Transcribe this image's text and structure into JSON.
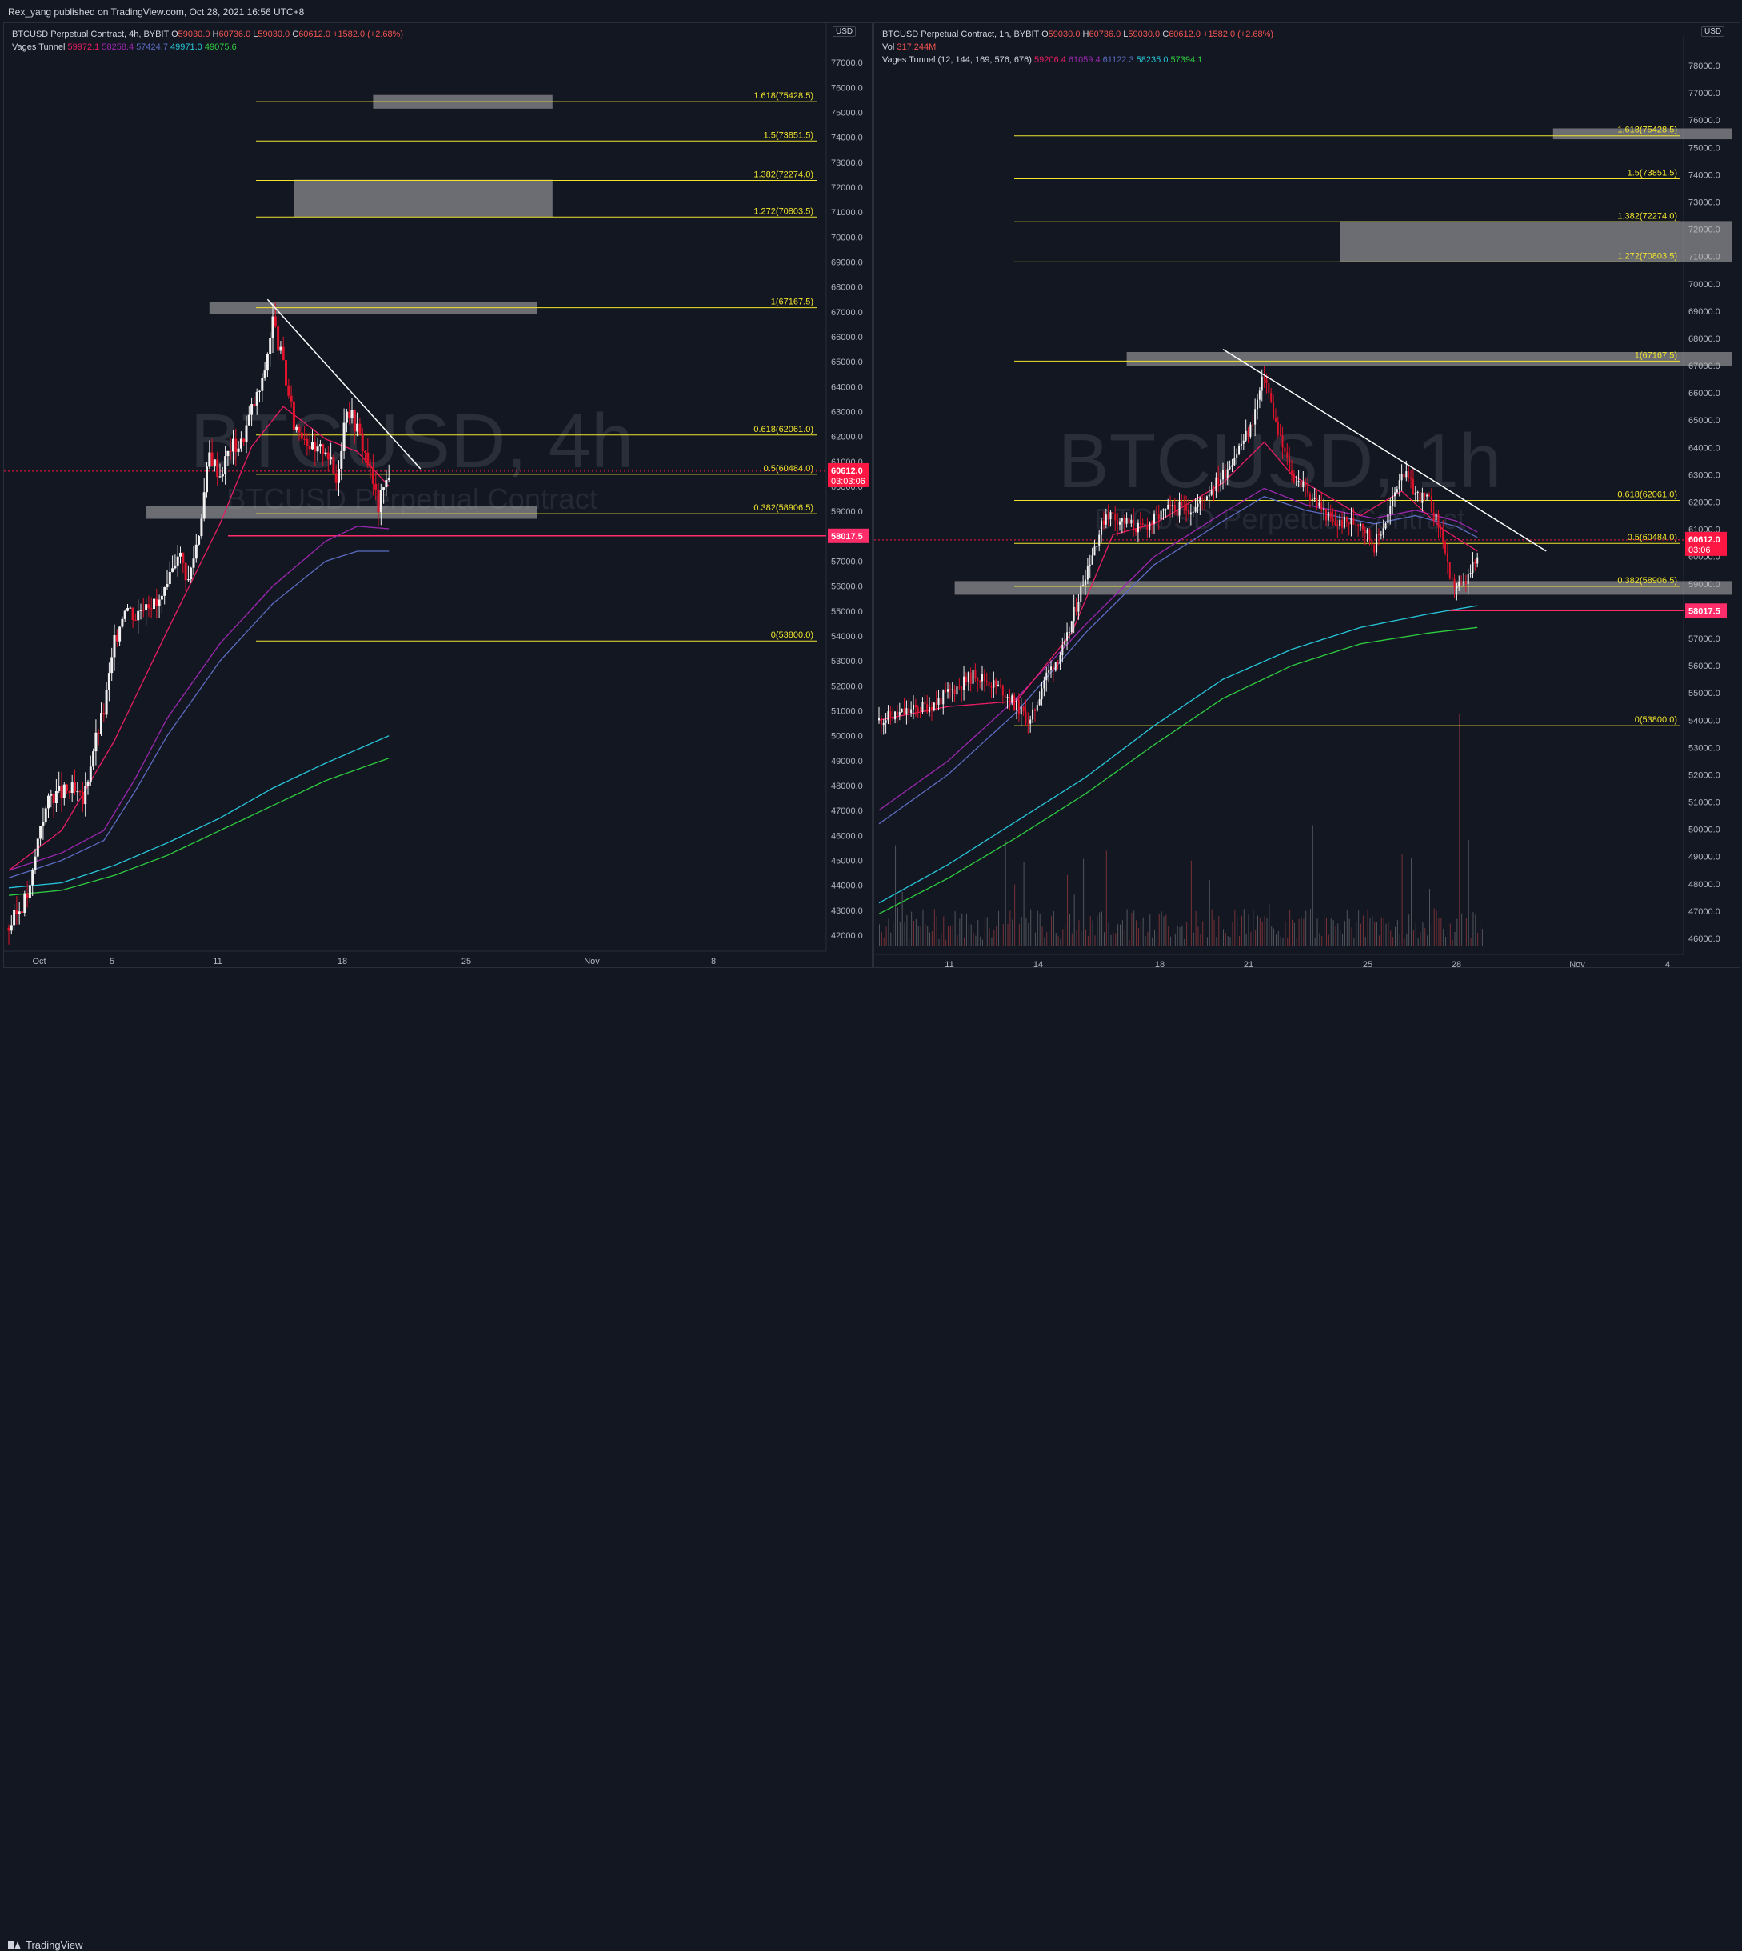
{
  "header": {
    "published": "Rex_yang published on TradingView.com, Oct 28, 2021 16:56 UTC+8"
  },
  "footer": {
    "brand": "TradingView"
  },
  "colors": {
    "bg": "#131722",
    "up": "#f0f0f0",
    "down": "#e0132b",
    "fib": "#f2e52d",
    "zone": "rgba(180,180,180,0.55)",
    "trend": "#ffffff",
    "support": "#ff2e6b",
    "ema_fast": "#e91e63",
    "ema_purple": "#9c27b0",
    "ema_blue": "#5c6bc0",
    "ema_cyan": "#26c6da",
    "ema_green": "#2ecc40",
    "price_tag": "#ff1744"
  },
  "fib_levels": [
    {
      "ratio": 1.618,
      "price": 75428.5,
      "label": "1.618(75428.5)"
    },
    {
      "ratio": 1.5,
      "price": 73851.5,
      "label": "1.5(73851.5)"
    },
    {
      "ratio": 1.382,
      "price": 72274.0,
      "label": "1.382(72274.0)"
    },
    {
      "ratio": 1.272,
      "price": 70803.5,
      "label": "1.272(70803.5)"
    },
    {
      "ratio": 1,
      "price": 67167.5,
      "label": "1(67167.5)"
    },
    {
      "ratio": 0.618,
      "price": 62061.0,
      "label": "0.618(62061.0)"
    },
    {
      "ratio": 0.5,
      "price": 60484.0,
      "label": "0.5(60484.0)"
    },
    {
      "ratio": 0.382,
      "price": 58906.5,
      "label": "0.382(58906.5)"
    },
    {
      "ratio": 0,
      "price": 53800.0,
      "label": "0(53800.0)"
    }
  ],
  "support_price": {
    "value": 58017.5,
    "label": "58017.5"
  },
  "chart_data": [
    {
      "type": "candlestick",
      "panel": "left",
      "symbol_line": "BTCUSD Perpetual Contract, 4h, BYBIT",
      "ohlc": {
        "o_label": "O",
        "o": "59030.0",
        "h_label": "H",
        "h": "60736.0",
        "l_label": "L",
        "l": "59030.0",
        "c_label": "C",
        "c": "60612.0",
        "chg": "+1582.0 (+2.68%)"
      },
      "indicator_name": "Vages Tunnel",
      "indicator_values": [
        "59972.1",
        "58258.4",
        "57424.7",
        "49971.0",
        "49075.6"
      ],
      "watermark": "BTCUSD, 4h",
      "watermark_sub": "BTCUSD Perpetual Contract",
      "currency": "USD",
      "last_price": "60612.0",
      "countdown": "03:03:06",
      "ylim": [
        42000,
        78000
      ],
      "y_ticks": [
        42000,
        43000,
        44000,
        45000,
        46000,
        47000,
        48000,
        49000,
        50000,
        51000,
        52000,
        53000,
        54000,
        55000,
        56000,
        57000,
        58000,
        59000,
        60000,
        61000,
        62000,
        63000,
        64000,
        65000,
        66000,
        67000,
        68000,
        69000,
        70000,
        71000,
        72000,
        73000,
        74000,
        75000,
        76000,
        77000
      ],
      "x_ticks": [
        "Oct",
        "5",
        "11",
        "18",
        "25",
        "Nov",
        "8"
      ],
      "price_path": [
        [
          0,
          42300
        ],
        [
          4,
          43800
        ],
        [
          6,
          46500
        ],
        [
          8,
          47600
        ],
        [
          12,
          47800
        ],
        [
          14,
          47300
        ],
        [
          16,
          49500
        ],
        [
          18,
          51000
        ],
        [
          20,
          53700
        ],
        [
          22,
          55300
        ],
        [
          24,
          54800
        ],
        [
          26,
          55500
        ],
        [
          28,
          55200
        ],
        [
          30,
          55800
        ],
        [
          32,
          57500
        ],
        [
          34,
          56200
        ],
        [
          36,
          58200
        ],
        [
          38,
          61300
        ],
        [
          40,
          60500
        ],
        [
          42,
          61600
        ],
        [
          44,
          61700
        ],
        [
          46,
          63100
        ],
        [
          48,
          64100
        ],
        [
          50,
          66700
        ],
        [
          52,
          64800
        ],
        [
          54,
          62500
        ],
        [
          56,
          62100
        ],
        [
          58,
          61300
        ],
        [
          60,
          61600
        ],
        [
          62,
          60200
        ],
        [
          64,
          63300
        ],
        [
          66,
          62300
        ],
        [
          68,
          61000
        ],
        [
          70,
          59200
        ],
        [
          72,
          60600
        ]
      ],
      "ema_fast": [
        [
          0,
          44600
        ],
        [
          10,
          46200
        ],
        [
          20,
          49800
        ],
        [
          30,
          54200
        ],
        [
          40,
          58500
        ],
        [
          46,
          61600
        ],
        [
          52,
          63200
        ],
        [
          60,
          61900
        ],
        [
          66,
          61400
        ],
        [
          72,
          60000
        ]
      ],
      "ema_purple": [
        [
          0,
          44600
        ],
        [
          10,
          45300
        ],
        [
          18,
          46200
        ],
        [
          24,
          48300
        ],
        [
          30,
          50700
        ],
        [
          40,
          53700
        ],
        [
          50,
          56000
        ],
        [
          60,
          57800
        ],
        [
          66,
          58400
        ],
        [
          72,
          58300
        ]
      ],
      "ema_blue": [
        [
          0,
          44300
        ],
        [
          10,
          45000
        ],
        [
          18,
          45800
        ],
        [
          24,
          47800
        ],
        [
          30,
          50000
        ],
        [
          40,
          53000
        ],
        [
          50,
          55300
        ],
        [
          60,
          57000
        ],
        [
          66,
          57400
        ],
        [
          72,
          57400
        ]
      ],
      "ema_cyan": [
        [
          0,
          43900
        ],
        [
          10,
          44100
        ],
        [
          20,
          44800
        ],
        [
          30,
          45700
        ],
        [
          40,
          46700
        ],
        [
          50,
          47900
        ],
        [
          60,
          48900
        ],
        [
          72,
          50000
        ]
      ],
      "ema_green": [
        [
          0,
          43600
        ],
        [
          10,
          43800
        ],
        [
          20,
          44400
        ],
        [
          30,
          45200
        ],
        [
          40,
          46200
        ],
        [
          50,
          47200
        ],
        [
          60,
          48200
        ],
        [
          72,
          49100
        ]
      ],
      "trendline": [
        [
          49,
          67500
        ],
        [
          78,
          60700
        ]
      ],
      "zones": [
        [
          69,
          103,
          75150,
          75700
        ],
        [
          54,
          103,
          70800,
          72300
        ],
        [
          38,
          100,
          66900,
          67400
        ],
        [
          26,
          100,
          58700,
          59200
        ]
      ],
      "n_bars": 124
    },
    {
      "type": "candlestick",
      "panel": "right",
      "symbol_line": "BTCUSD Perpetual Contract, 1h, BYBIT",
      "ohlc": {
        "o_label": "O",
        "o": "59030.0",
        "h_label": "H",
        "h": "60736.0",
        "l_label": "L",
        "l": "59030.0",
        "c_label": "C",
        "c": "60612.0",
        "chg": "+1582.0 (+2.68%)"
      },
      "vol_label": "Vol",
      "vol_value": "317.244M",
      "indicator_name": "Vages Tunnel (12, 144, 169, 576, 676)",
      "indicator_values": [
        "59206.4",
        "61059.4",
        "61122.3",
        "58235.0",
        "57394.1"
      ],
      "watermark": "BTCUSD, 1h",
      "watermark_sub": "BTCUSD Perpetual Contract",
      "currency": "USD",
      "last_price": "60612.0",
      "countdown": "03:06",
      "ylim": [
        46000,
        78500
      ],
      "y_ticks": [
        46000,
        47000,
        48000,
        49000,
        50000,
        51000,
        52000,
        53000,
        54000,
        55000,
        56000,
        57000,
        58000,
        59000,
        60000,
        61000,
        62000,
        63000,
        64000,
        65000,
        66000,
        67000,
        68000,
        69000,
        70000,
        71000,
        72000,
        73000,
        74000,
        75000,
        76000,
        77000,
        78000
      ],
      "x_ticks": [
        "11",
        "14",
        "18",
        "21",
        "25",
        "28",
        "Nov",
        "4"
      ],
      "price_path": [
        [
          0,
          54000
        ],
        [
          8,
          54600
        ],
        [
          14,
          55700
        ],
        [
          18,
          55100
        ],
        [
          22,
          53900
        ],
        [
          24,
          55500
        ],
        [
          27,
          56700
        ],
        [
          30,
          59400
        ],
        [
          33,
          61600
        ],
        [
          38,
          61000
        ],
        [
          42,
          61700
        ],
        [
          46,
          61800
        ],
        [
          50,
          63000
        ],
        [
          54,
          64700
        ],
        [
          56,
          66700
        ],
        [
          58,
          64500
        ],
        [
          60,
          63000
        ],
        [
          62,
          62500
        ],
        [
          66,
          61200
        ],
        [
          70,
          61300
        ],
        [
          72,
          60400
        ],
        [
          74,
          61500
        ],
        [
          76,
          63200
        ],
        [
          78,
          62300
        ],
        [
          80,
          62000
        ],
        [
          82,
          60700
        ],
        [
          83,
          59000
        ],
        [
          85,
          58900
        ],
        [
          87,
          59900
        ]
      ],
      "ema_fast": [
        [
          0,
          54000
        ],
        [
          10,
          54500
        ],
        [
          20,
          54700
        ],
        [
          28,
          57200
        ],
        [
          34,
          60800
        ],
        [
          40,
          61200
        ],
        [
          50,
          62700
        ],
        [
          56,
          64200
        ],
        [
          60,
          63000
        ],
        [
          70,
          61500
        ],
        [
          76,
          62400
        ],
        [
          82,
          61000
        ],
        [
          87,
          60200
        ]
      ],
      "ema_purple": [
        [
          0,
          50700
        ],
        [
          10,
          52500
        ],
        [
          20,
          54800
        ],
        [
          30,
          57500
        ],
        [
          40,
          60000
        ],
        [
          50,
          61600
        ],
        [
          56,
          62500
        ],
        [
          62,
          61900
        ],
        [
          72,
          61400
        ],
        [
          78,
          61700
        ],
        [
          84,
          61300
        ],
        [
          87,
          60900
        ]
      ],
      "ema_blue": [
        [
          0,
          50200
        ],
        [
          10,
          52000
        ],
        [
          20,
          54300
        ],
        [
          30,
          57200
        ],
        [
          40,
          59700
        ],
        [
          50,
          61300
        ],
        [
          56,
          62200
        ],
        [
          62,
          61700
        ],
        [
          72,
          61200
        ],
        [
          78,
          61500
        ],
        [
          84,
          61100
        ],
        [
          87,
          60700
        ]
      ],
      "ema_cyan": [
        [
          0,
          47300
        ],
        [
          10,
          48700
        ],
        [
          20,
          50300
        ],
        [
          30,
          51900
        ],
        [
          40,
          53800
        ],
        [
          50,
          55500
        ],
        [
          60,
          56600
        ],
        [
          70,
          57400
        ],
        [
          80,
          57900
        ],
        [
          87,
          58200
        ]
      ],
      "ema_green": [
        [
          0,
          46900
        ],
        [
          10,
          48200
        ],
        [
          20,
          49700
        ],
        [
          30,
          51300
        ],
        [
          40,
          53100
        ],
        [
          50,
          54800
        ],
        [
          60,
          56000
        ],
        [
          70,
          56800
        ],
        [
          80,
          57200
        ],
        [
          87,
          57400
        ]
      ],
      "trendline": [
        [
          50,
          67600
        ],
        [
          97,
          60200
        ]
      ],
      "zones": [
        [
          98,
          124,
          75300,
          75700
        ],
        [
          67,
          124,
          70800,
          72300
        ],
        [
          36,
          124,
          67000,
          67500
        ],
        [
          11,
          124,
          58600,
          59100
        ]
      ],
      "n_bars": 88
    }
  ]
}
